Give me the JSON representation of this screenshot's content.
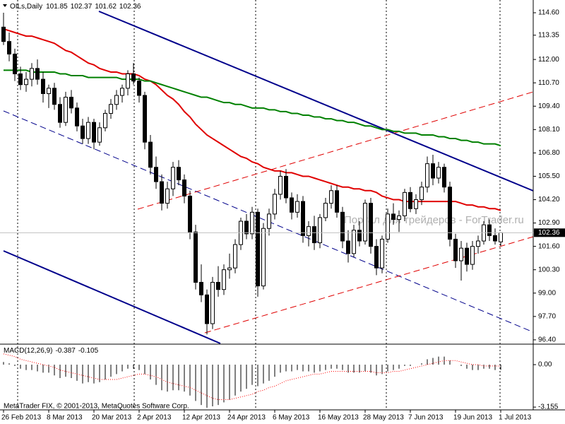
{
  "chart_data": [
    {
      "type": "candlestick",
      "title": "OILs,Daily",
      "watermark": "Портал для трейдеров - ForTrader.ru",
      "categories": [
        "26 Feb 2013",
        null,
        null,
        null,
        null,
        null,
        null,
        null,
        "8 Mar 2013",
        null,
        null,
        null,
        null,
        null,
        null,
        null,
        "20 Mar 2013",
        null,
        null,
        null,
        null,
        null,
        null,
        null,
        "2 Apr 2013",
        null,
        null,
        null,
        null,
        null,
        null,
        null,
        "12 Apr 2013",
        null,
        null,
        null,
        null,
        null,
        null,
        null,
        "24 Apr 2013",
        null,
        null,
        null,
        null,
        null,
        null,
        null,
        "6 May 2013",
        null,
        null,
        null,
        null,
        null,
        null,
        null,
        "16 May 2013",
        null,
        null,
        null,
        null,
        null,
        null,
        null,
        "28 May 2013",
        null,
        null,
        null,
        null,
        null,
        null,
        null,
        "7 Jun 2013",
        null,
        null,
        null,
        null,
        null,
        null,
        null,
        "19 Jun 2013",
        null,
        null,
        null,
        null,
        null,
        null,
        null,
        "1 Jul 2013"
      ],
      "open": [
        113.8,
        113.0,
        112.3,
        111.2,
        110.6,
        110.9,
        111.5,
        110.9,
        110.1,
        110.4,
        109.5,
        108.5,
        109.9,
        109.3,
        108.3,
        107.6,
        108.5,
        107.4,
        108.2,
        109.0,
        109.5,
        110.0,
        110.4,
        111.2,
        110.8,
        110.0,
        107.4,
        106.0,
        105.2,
        104.0,
        104.8,
        106.0,
        105.3,
        104.4,
        102.4,
        99.6,
        98.9,
        97.3,
        99.6,
        99.2,
        100.3,
        100.4,
        101.7,
        103.0,
        102.3,
        103.5,
        99.4,
        102.6,
        103.4,
        104.5,
        105.5,
        104.3,
        103.5,
        104.1,
        102.2,
        102.7,
        101.8,
        103.2,
        104.0,
        104.7,
        103.5,
        101.9,
        101.2,
        102.5,
        101.9,
        104.0,
        101.6,
        100.4,
        102.0,
        103.4,
        103.1,
        103.3,
        104.6,
        103.7,
        104.2,
        104.9,
        106.2,
        105.4,
        106.0,
        104.9,
        102.0,
        100.8,
        101.5,
        100.6,
        101.6,
        101.9,
        102.8,
        102.2,
        101.85
      ],
      "high": [
        114.6,
        113.5,
        112.6,
        111.6,
        111.3,
        111.8,
        112.0,
        111.3,
        110.6,
        110.7,
        109.9,
        110.2,
        110.3,
        109.6,
        108.7,
        108.8,
        108.7,
        108.5,
        109.2,
        109.8,
        110.3,
        110.6,
        111.4,
        111.8,
        111.0,
        110.2,
        107.8,
        106.6,
        105.6,
        105.2,
        106.3,
        106.4,
        105.6,
        104.7,
        102.8,
        100.6,
        99.2,
        99.9,
        100.5,
        100.6,
        101.2,
        102.0,
        103.2,
        103.4,
        103.8,
        103.7,
        102.9,
        103.7,
        104.8,
        105.8,
        105.9,
        104.6,
        104.5,
        104.4,
        103.0,
        103.3,
        103.4,
        104.3,
        105.0,
        105.0,
        103.8,
        102.5,
        102.8,
        103.0,
        104.2,
        104.3,
        102.0,
        102.2,
        103.7,
        104.0,
        103.6,
        104.8,
        104.9,
        104.5,
        105.2,
        106.6,
        106.7,
        106.3,
        106.2,
        105.2,
        102.3,
        101.9,
        101.8,
        101.9,
        102.2,
        103.0,
        103.1,
        102.6,
        102.37
      ],
      "low": [
        112.8,
        111.9,
        110.8,
        110.3,
        110.2,
        110.5,
        110.6,
        109.6,
        109.3,
        109.2,
        108.2,
        108.3,
        109.0,
        108.0,
        107.3,
        107.3,
        107.0,
        107.2,
        108.0,
        108.7,
        109.2,
        109.6,
        110.0,
        110.6,
        109.6,
        107.0,
        105.6,
        104.8,
        103.6,
        103.7,
        104.4,
        105.0,
        104.0,
        102.0,
        99.2,
        98.5,
        96.7,
        97.0,
        98.8,
        98.9,
        99.8,
        100.1,
        101.4,
        102.0,
        102.0,
        98.8,
        99.2,
        102.2,
        103.1,
        104.2,
        104.0,
        103.1,
        103.2,
        101.8,
        101.6,
        101.4,
        101.5,
        103.0,
        103.7,
        103.2,
        101.5,
        100.7,
        101.0,
        101.6,
        101.7,
        101.2,
        100.0,
        100.1,
        101.8,
        102.8,
        102.4,
        103.0,
        103.5,
        103.4,
        103.9,
        104.6,
        105.0,
        105.1,
        104.6,
        101.6,
        100.4,
        99.7,
        100.2,
        100.3,
        101.2,
        101.7,
        101.9,
        101.7,
        101.62
      ],
      "close": [
        113.0,
        112.3,
        111.2,
        110.6,
        110.9,
        111.5,
        110.9,
        110.1,
        110.4,
        109.5,
        108.5,
        109.9,
        109.3,
        108.3,
        107.6,
        108.5,
        107.4,
        108.2,
        109.0,
        109.5,
        110.0,
        110.4,
        111.2,
        110.8,
        110.0,
        107.4,
        106.0,
        105.2,
        104.0,
        104.8,
        106.0,
        105.3,
        104.4,
        102.4,
        99.6,
        98.9,
        97.3,
        99.6,
        99.2,
        100.3,
        100.4,
        101.7,
        103.0,
        102.3,
        103.5,
        99.4,
        102.6,
        103.4,
        104.5,
        105.5,
        104.3,
        103.5,
        104.1,
        102.2,
        102.7,
        101.8,
        103.2,
        104.0,
        104.7,
        103.5,
        101.9,
        101.2,
        102.5,
        101.9,
        104.0,
        101.6,
        100.4,
        102.0,
        103.4,
        103.1,
        103.3,
        104.6,
        103.7,
        104.2,
        104.9,
        106.2,
        105.4,
        106.0,
        104.9,
        102.0,
        100.8,
        101.5,
        100.6,
        101.6,
        101.9,
        102.8,
        102.2,
        101.9,
        102.36
      ],
      "series": [
        {
          "color": "#e00000",
          "values": [
            113.7,
            113.6,
            113.5,
            113.4,
            113.3,
            113.3,
            113.2,
            113.1,
            113.0,
            112.9,
            112.7,
            112.5,
            112.4,
            112.2,
            112.0,
            111.8,
            111.7,
            111.5,
            111.4,
            111.3,
            111.3,
            111.2,
            111.2,
            111.2,
            111.1,
            110.9,
            110.8,
            110.6,
            110.3,
            110.0,
            109.8,
            109.5,
            109.1,
            108.8,
            108.4,
            108.1,
            107.8,
            107.6,
            107.4,
            107.2,
            107.0,
            106.8,
            106.6,
            106.5,
            106.3,
            106.2,
            106.0,
            105.9,
            105.8,
            105.8,
            105.7,
            105.7,
            105.6,
            105.5,
            105.5,
            105.4,
            105.3,
            105.2,
            105.1,
            105.0,
            104.9,
            104.9,
            104.8,
            104.8,
            104.7,
            104.7,
            104.6,
            104.4,
            104.3,
            104.2,
            104.2,
            104.1,
            104.1,
            104.1,
            104.1,
            104.1,
            104.1,
            104.1,
            104.1,
            104.1,
            104.1,
            104.0,
            103.9,
            103.9,
            103.8,
            103.8,
            103.7,
            103.7,
            103.6
          ]
        },
        {
          "color": "#008000",
          "values": [
            111.4,
            111.4,
            111.4,
            111.4,
            111.4,
            111.3,
            111.3,
            111.3,
            111.3,
            111.3,
            111.2,
            111.2,
            111.1,
            111.1,
            111.1,
            111.0,
            111.0,
            111.0,
            111.0,
            111.0,
            111.0,
            110.9,
            110.9,
            110.9,
            110.9,
            110.8,
            110.8,
            110.7,
            110.6,
            110.5,
            110.4,
            110.3,
            110.2,
            110.1,
            110.0,
            109.9,
            109.9,
            109.8,
            109.7,
            109.6,
            109.6,
            109.5,
            109.5,
            109.4,
            109.3,
            109.3,
            109.3,
            109.2,
            109.2,
            109.1,
            109.1,
            109.0,
            109.0,
            108.9,
            108.9,
            108.8,
            108.8,
            108.7,
            108.7,
            108.6,
            108.6,
            108.5,
            108.5,
            108.4,
            108.3,
            108.3,
            108.2,
            108.1,
            108.1,
            108.0,
            108.0,
            107.9,
            107.9,
            107.9,
            107.8,
            107.8,
            107.8,
            107.7,
            107.7,
            107.6,
            107.6,
            107.5,
            107.5,
            107.4,
            107.4,
            107.3,
            107.3,
            107.3,
            107.2
          ]
        }
      ],
      "ylim": [
        96.16,
        115.23
      ],
      "yticks": [
        {
          "value": 114.6,
          "label": "114.60"
        },
        {
          "value": 113.35,
          "label": "113.35"
        },
        {
          "value": 112.0,
          "label": "112.00"
        },
        {
          "value": 110.7,
          "label": "110.70"
        },
        {
          "value": 109.4,
          "label": "109.40"
        },
        {
          "value": 108.1,
          "label": "108.10"
        },
        {
          "value": 106.8,
          "label": "106.80"
        },
        {
          "value": 105.5,
          "label": "105.50"
        },
        {
          "value": 104.2,
          "label": "104.20"
        },
        {
          "value": 102.9,
          "label": "102.90"
        },
        {
          "value": 101.6,
          "label": "101.60"
        },
        {
          "value": 100.3,
          "label": "100.30"
        },
        {
          "value": 99.0,
          "label": "99.00"
        },
        {
          "value": 97.7,
          "label": "97.70"
        },
        {
          "value": 96.4,
          "label": "96.40"
        }
      ]
    },
    {
      "type": "macd",
      "title": "MACD(12,26,9)",
      "series": [
        {
          "color": "#000000",
          "style": "histogram",
          "values": [
            0.2,
            0.1,
            -0.1,
            -0.3,
            -0.4,
            -0.4,
            -0.5,
            -0.6,
            -0.6,
            -0.8,
            -1.0,
            -0.9,
            -1.0,
            -1.2,
            -1.4,
            -1.3,
            -1.4,
            -1.3,
            -1.1,
            -0.9,
            -0.7,
            -0.5,
            -0.3,
            -0.3,
            -0.4,
            -0.7,
            -1.1,
            -1.5,
            -1.9,
            -2.0,
            -1.9,
            -1.9,
            -2.0,
            -2.3,
            -2.7,
            -3.0,
            -3.2,
            -3.1,
            -3.0,
            -2.8,
            -2.6,
            -2.3,
            -2.0,
            -1.8,
            -1.5,
            -1.6,
            -1.4,
            -1.2,
            -0.9,
            -0.6,
            -0.5,
            -0.5,
            -0.4,
            -0.5,
            -0.5,
            -0.6,
            -0.5,
            -0.4,
            -0.3,
            -0.3,
            -0.4,
            -0.6,
            -0.6,
            -0.6,
            -0.5,
            -0.6,
            -0.8,
            -0.7,
            -0.5,
            -0.4,
            -0.3,
            -0.1,
            -0.1,
            0.0,
            0.1,
            0.4,
            0.5,
            0.6,
            0.6,
            0.3,
            0.0,
            -0.1,
            -0.3,
            -0.4,
            -0.4,
            -0.3,
            -0.3,
            -0.4,
            -0.387
          ]
        },
        {
          "color": "#ff0000",
          "style": "dotted",
          "values": [
            0.8,
            0.7,
            0.6,
            0.4,
            0.3,
            0.2,
            0.1,
            0.0,
            -0.1,
            -0.2,
            -0.4,
            -0.5,
            -0.6,
            -0.7,
            -0.8,
            -0.9,
            -1.0,
            -1.1,
            -1.1,
            -1.1,
            -1.1,
            -1.0,
            -0.9,
            -0.8,
            -0.7,
            -0.7,
            -0.8,
            -0.9,
            -1.1,
            -1.3,
            -1.4,
            -1.5,
            -1.6,
            -1.7,
            -1.9,
            -2.1,
            -2.3,
            -2.5,
            -2.6,
            -2.6,
            -2.6,
            -2.5,
            -2.4,
            -2.3,
            -2.2,
            -2.0,
            -1.9,
            -1.7,
            -1.6,
            -1.4,
            -1.2,
            -1.1,
            -1.0,
            -0.9,
            -0.8,
            -0.7,
            -0.7,
            -0.6,
            -0.5,
            -0.5,
            -0.5,
            -0.5,
            -0.5,
            -0.5,
            -0.5,
            -0.5,
            -0.6,
            -0.6,
            -0.6,
            -0.5,
            -0.5,
            -0.4,
            -0.3,
            -0.2,
            -0.1,
            0.0,
            0.1,
            0.2,
            0.3,
            0.3,
            0.3,
            0.2,
            0.1,
            0.0,
            0.0,
            -0.1,
            -0.1,
            -0.1,
            -0.105
          ]
        }
      ],
      "ylim": [
        -3.36,
        1.47
      ],
      "yticks": [
        {
          "value": 0,
          "label": "0.00"
        },
        -3.155
      ]
    }
  ],
  "copyright": "MetaTrader FIX, © 2001-2013, MetaQuotes Software Corp."
}
